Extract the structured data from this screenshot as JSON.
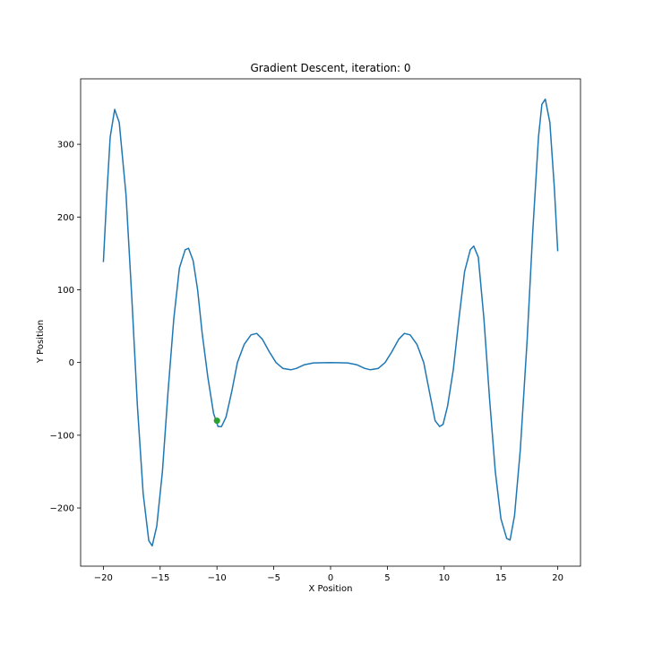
{
  "chart_data": {
    "type": "line",
    "title": "Gradient Descent, iteration: 0",
    "xlabel": "X Position",
    "ylabel": "Y Position",
    "xlim": [
      -22,
      22
    ],
    "ylim": [
      -280,
      390
    ],
    "xticks": [
      -20,
      -15,
      -10,
      -5,
      0,
      5,
      10,
      15,
      20
    ],
    "xtick_labels": [
      "−20",
      "−15",
      "−10",
      "−5",
      "0",
      "5",
      "10",
      "15",
      "20"
    ],
    "yticks": [
      -200,
      -100,
      0,
      100,
      200,
      300
    ],
    "ytick_labels": [
      "−200",
      "−100",
      "0",
      "100",
      "200",
      "300"
    ],
    "grid": false,
    "series": [
      {
        "color": "#1f77b4",
        "points": [
          [
            -20.0,
            138
          ],
          [
            -19.7,
            230
          ],
          [
            -19.4,
            310
          ],
          [
            -19.0,
            348
          ],
          [
            -18.6,
            330
          ],
          [
            -18.0,
            230
          ],
          [
            -17.5,
            90
          ],
          [
            -17.0,
            -60
          ],
          [
            -16.5,
            -180
          ],
          [
            -16.0,
            -245
          ],
          [
            -15.7,
            -252
          ],
          [
            -15.3,
            -225
          ],
          [
            -14.8,
            -150
          ],
          [
            -14.3,
            -40
          ],
          [
            -13.8,
            60
          ],
          [
            -13.3,
            130
          ],
          [
            -12.8,
            155
          ],
          [
            -12.5,
            157
          ],
          [
            -12.1,
            140
          ],
          [
            -11.7,
            100
          ],
          [
            -11.3,
            40
          ],
          [
            -10.8,
            -20
          ],
          [
            -10.3,
            -70
          ],
          [
            -9.9,
            -88
          ],
          [
            -9.6,
            -88
          ],
          [
            -9.2,
            -75
          ],
          [
            -8.7,
            -40
          ],
          [
            -8.2,
            0
          ],
          [
            -7.6,
            25
          ],
          [
            -7.0,
            38
          ],
          [
            -6.5,
            40
          ],
          [
            -6.0,
            32
          ],
          [
            -5.4,
            15
          ],
          [
            -4.8,
            0
          ],
          [
            -4.2,
            -8
          ],
          [
            -3.5,
            -10
          ],
          [
            -3.0,
            -8
          ],
          [
            -2.3,
            -3
          ],
          [
            -1.5,
            -0.5
          ],
          [
            0.0,
            0
          ],
          [
            1.5,
            -0.5
          ],
          [
            2.3,
            -3
          ],
          [
            3.0,
            -8
          ],
          [
            3.5,
            -10
          ],
          [
            4.2,
            -8
          ],
          [
            4.8,
            0
          ],
          [
            5.4,
            15
          ],
          [
            6.0,
            32
          ],
          [
            6.5,
            40
          ],
          [
            7.0,
            38
          ],
          [
            7.6,
            25
          ],
          [
            8.2,
            0
          ],
          [
            8.7,
            -40
          ],
          [
            9.2,
            -80
          ],
          [
            9.6,
            -88
          ],
          [
            9.9,
            -85
          ],
          [
            10.3,
            -60
          ],
          [
            10.8,
            -10
          ],
          [
            11.3,
            60
          ],
          [
            11.8,
            125
          ],
          [
            12.3,
            155
          ],
          [
            12.6,
            160
          ],
          [
            13.0,
            145
          ],
          [
            13.5,
            60
          ],
          [
            14.0,
            -50
          ],
          [
            14.5,
            -150
          ],
          [
            15.0,
            -215
          ],
          [
            15.5,
            -242
          ],
          [
            15.8,
            -244
          ],
          [
            16.2,
            -210
          ],
          [
            16.7,
            -120
          ],
          [
            17.3,
            30
          ],
          [
            17.8,
            180
          ],
          [
            18.3,
            310
          ],
          [
            18.6,
            355
          ],
          [
            18.9,
            362
          ],
          [
            19.3,
            330
          ],
          [
            19.7,
            240
          ],
          [
            20.0,
            153
          ]
        ]
      }
    ],
    "marker": {
      "x": -10.0,
      "y": -80,
      "color": "#2ca02c"
    }
  }
}
